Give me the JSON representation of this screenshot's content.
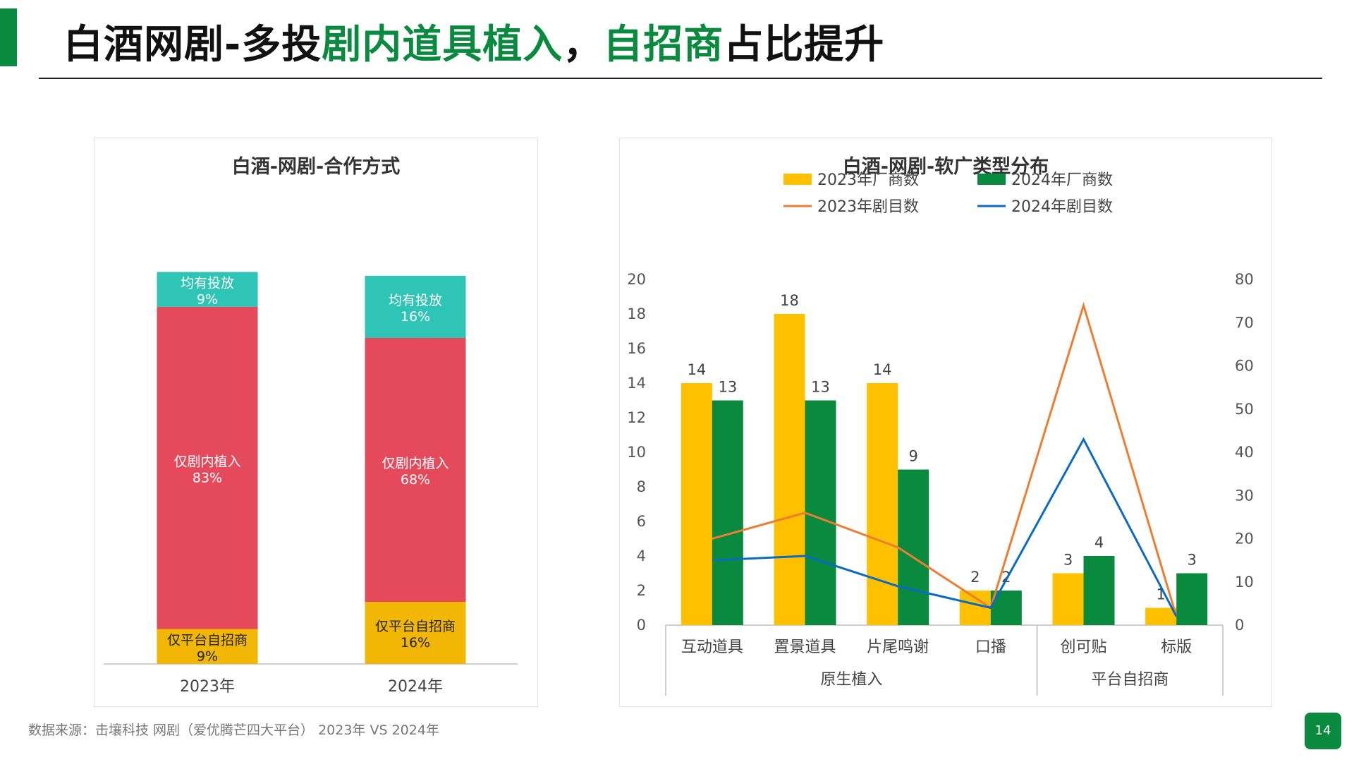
{
  "header": {
    "title_part1": "白酒网剧-多投",
    "title_part2": "剧内道具植入",
    "title_part3": "，",
    "title_part4": "自招商",
    "title_part5": "占比提升",
    "accent_color": "#0a8a3f"
  },
  "source_note": "数据来源：击壤科技  网剧（爱优腾芒四大平台） 2023年 VS 2024年",
  "page_number": "14",
  "chart_data": [
    {
      "type": "bar",
      "stacked": true,
      "percent": true,
      "title": "白酒-网剧-合作方式",
      "categories": [
        "2023年",
        "2024年"
      ],
      "series": [
        {
          "name": "仅平台自招商",
          "values": [
            9,
            16
          ],
          "labels": [
            "9%",
            "16%"
          ],
          "color": "#f2b705"
        },
        {
          "name": "仅剧内植入",
          "values": [
            83,
            68
          ],
          "labels": [
            "83%",
            "68%"
          ],
          "color": "#e44a5b"
        },
        {
          "name": "均有投放",
          "values": [
            9,
            16
          ],
          "labels": [
            "9%",
            "16%"
          ],
          "color": "#2ec4b6"
        }
      ]
    },
    {
      "type": "bar",
      "title": "白酒-网剧-软广类型分布",
      "categories": [
        "互动道具",
        "置景道具",
        "片尾鸣谢",
        "口播",
        "创可贴",
        "标版"
      ],
      "groups": [
        {
          "name": "原生植入",
          "members": [
            "互动道具",
            "置景道具",
            "片尾鸣谢",
            "口播"
          ]
        },
        {
          "name": "平台自招商",
          "members": [
            "创可贴",
            "标版"
          ]
        }
      ],
      "ylim": [
        0,
        20
      ],
      "yticks": [
        0,
        2,
        4,
        6,
        8,
        10,
        12,
        14,
        16,
        18,
        20
      ],
      "y2lim": [
        0,
        80
      ],
      "y2ticks": [
        0,
        10,
        20,
        30,
        40,
        50,
        60,
        70,
        80
      ],
      "series": [
        {
          "name": "2023年厂商数",
          "kind": "bar",
          "axis": "left",
          "color": "#ffc000",
          "values": [
            14,
            18,
            14,
            2,
            3,
            1
          ]
        },
        {
          "name": "2024年厂商数",
          "kind": "bar",
          "axis": "left",
          "color": "#0a8a3f",
          "values": [
            13,
            13,
            9,
            2,
            4,
            3
          ]
        },
        {
          "name": "2023年剧目数",
          "kind": "line",
          "axis": "right",
          "color": "#ed7d31",
          "values": [
            20,
            26,
            18,
            4,
            74,
            2
          ]
        },
        {
          "name": "2024年剧目数",
          "kind": "line",
          "axis": "right",
          "color": "#0b6bc2",
          "values": [
            15,
            16,
            9,
            4,
            43,
            2
          ]
        }
      ],
      "legend_position": "top"
    }
  ]
}
